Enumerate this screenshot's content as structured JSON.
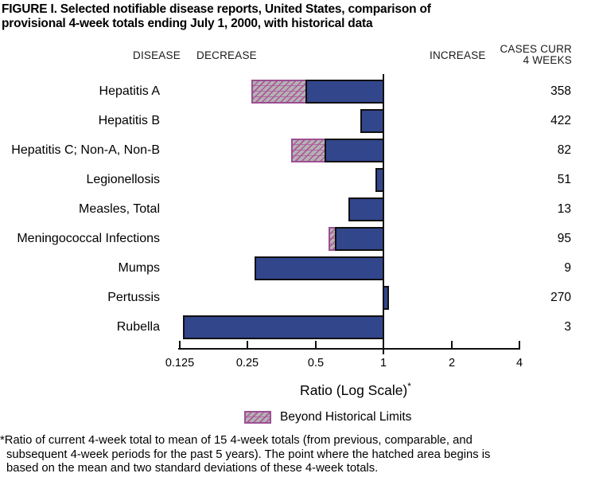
{
  "title": {
    "line1": "FIGURE I. Selected notifiable disease reports, United States, comparison of",
    "line2": "provisional 4-week totals ending July 1, 2000, with historical data"
  },
  "headers": {
    "disease": "DISEASE",
    "decrease": "DECREASE",
    "increase": "INCREASE",
    "cases_line1": "CASES CURR",
    "cases_line2": "4 WEEKS"
  },
  "chart_data": {
    "type": "bar",
    "orientation": "horizontal",
    "scale": "log2",
    "baseline_value": 1,
    "xlabel": "Ratio (Log Scale)",
    "xlabel_sup": "*",
    "x_ticks": [
      "0.125",
      "0.25",
      "0.5",
      "1",
      "2",
      "4"
    ],
    "xlim": [
      0.125,
      4
    ],
    "legend": {
      "hatch_label": "Beyond Historical Limits"
    },
    "rows": [
      {
        "disease": "Hepatitis A",
        "ratio": 0.26,
        "beyond_limits_from": 0.45,
        "cases": "358"
      },
      {
        "disease": "Hepatitis B",
        "ratio": 0.79,
        "beyond_limits_from": null,
        "cases": "422"
      },
      {
        "disease": "Hepatitis C; Non-A, Non-B",
        "ratio": 0.39,
        "beyond_limits_from": 0.55,
        "cases": "82"
      },
      {
        "disease": "Legionellosis",
        "ratio": 0.92,
        "beyond_limits_from": null,
        "cases": "51"
      },
      {
        "disease": "Measles, Total",
        "ratio": 0.7,
        "beyond_limits_from": null,
        "cases": "13"
      },
      {
        "disease": "Meningococcal Infections",
        "ratio": 0.57,
        "beyond_limits_from": 0.61,
        "cases": "95"
      },
      {
        "disease": "Mumps",
        "ratio": 0.27,
        "beyond_limits_from": null,
        "cases": "9"
      },
      {
        "disease": "Pertussis",
        "ratio": 1.06,
        "beyond_limits_from": null,
        "cases": "270"
      },
      {
        "disease": "Rubella",
        "ratio": 0.13,
        "beyond_limits_from": null,
        "cases": "3"
      }
    ]
  },
  "footnote": {
    "lines": [
      "*Ratio of current 4-week total to mean of 15 4-week totals (from previous, comparable, and",
      "subsequent 4-week periods for the past 5 years). The point where the hatched area begins is",
      "based on the mean and two standard deviations of these 4-week totals."
    ]
  },
  "colors": {
    "bar_blue": "#32468c",
    "hatch_gray": "#b3b3b3",
    "hatch_magenta": "#b0549c",
    "axis_black": "#101010"
  }
}
